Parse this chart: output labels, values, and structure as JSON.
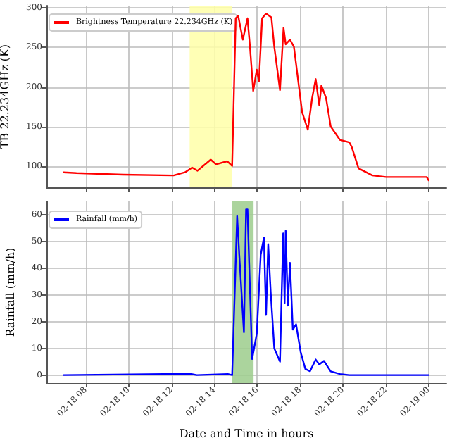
{
  "chart_data": [
    {
      "type": "line",
      "ylabel": "TB 22.234GHz (K)",
      "xlim": [
        "--02-18T06:10",
        "--02-19T00:50"
      ],
      "ylim": [
        73,
        303
      ],
      "yticks": [
        100,
        150,
        200,
        250,
        300
      ],
      "xticks": [
        {
          "value": "--02-18T08:00",
          "label": null
        },
        {
          "value": "--02-18T10:00",
          "label": null
        },
        {
          "value": "--02-18T12:00",
          "label": null
        },
        {
          "value": "--02-18T14:00",
          "label": null
        },
        {
          "value": "--02-18T16:00",
          "label": null
        },
        {
          "value": "--02-18T18:00",
          "label": null
        },
        {
          "value": "--02-18T20:00",
          "label": null
        },
        {
          "value": "--02-18T22:00",
          "label": null
        },
        {
          "value": "--02-19T00:00",
          "label": null
        }
      ],
      "tick_labels": "y",
      "grid": true,
      "legend": "top left",
      "marker": "none",
      "line_style": "solid",
      "bands": [
        {
          "axis": "x",
          "from": "--02-18T12:51",
          "to": "--02-18T14:50",
          "color": "#ffffa8"
        }
      ],
      "series": [
        {
          "name": "Brightness Temperature 22.234GHz (K)",
          "color": "#ff0000",
          "x": [
            "--02-18T06:58",
            "--02-18T07:34",
            "--02-18T09:44",
            "--02-18T12:06",
            "--02-18T12:38",
            "--02-18T12:58",
            "--02-18T13:13",
            "--02-18T13:50",
            "--02-18T14:05",
            "--02-18T14:36",
            "--02-18T14:50",
            "--02-18T15:00",
            "--02-18T15:07",
            "--02-18T15:20",
            "--02-18T15:33",
            "--02-18T15:40",
            "--02-18T15:49",
            "--02-18T15:59",
            "--02-18T16:05",
            "--02-18T16:14",
            "--02-18T16:25",
            "--02-18T16:40",
            "--02-18T16:48",
            "--02-18T17:04",
            "--02-18T17:14",
            "--02-18T17:20",
            "--02-18T17:32",
            "--02-18T17:43",
            "--02-18T18:06",
            "--02-18T18:22",
            "--02-18T18:34",
            "--02-18T18:44",
            "--02-18T18:54",
            "--02-18T19:00",
            "--02-18T19:13",
            "--02-18T19:26",
            "--02-18T19:52",
            "--02-18T20:18",
            "--02-18T20:25",
            "--02-18T20:44",
            "--02-18T21:23",
            "--02-18T22:01",
            "--02-18T23:55",
            "--02-19T00:00"
          ],
          "values": [
            92,
            91,
            89,
            88,
            92,
            98,
            94,
            108,
            102,
            106,
            100,
            287,
            290,
            260,
            287,
            251,
            195,
            222,
            207,
            287,
            293,
            288,
            251,
            196,
            275,
            254,
            260,
            251,
            168,
            146,
            186,
            210,
            177,
            202,
            186,
            150,
            133,
            130,
            124,
            97,
            88,
            86,
            86,
            82
          ]
        }
      ]
    },
    {
      "type": "line",
      "xlabel": "Date and Time in hours",
      "ylabel": "Rainfall (mm/h)",
      "xlim": [
        "--02-18T06:10",
        "--02-19T00:50"
      ],
      "ylim": [
        -3,
        65
      ],
      "yticks": [
        0,
        10,
        20,
        30,
        40,
        50,
        60
      ],
      "xticks": [
        {
          "value": "--02-18T08:00",
          "label": "02-18 08"
        },
        {
          "value": "--02-18T10:00",
          "label": "02-18 10"
        },
        {
          "value": "--02-18T12:00",
          "label": "02-18 12"
        },
        {
          "value": "--02-18T14:00",
          "label": "02-18 14"
        },
        {
          "value": "--02-18T16:00",
          "label": "02-18 16"
        },
        {
          "value": "--02-18T18:00",
          "label": "02-18 18"
        },
        {
          "value": "--02-18T20:00",
          "label": "02-18 20"
        },
        {
          "value": "--02-18T22:00",
          "label": "02-18 22"
        },
        {
          "value": "--02-19T00:00",
          "label": "02-19 00"
        }
      ],
      "grid": true,
      "legend": "top left",
      "marker": "none",
      "line_style": "solid",
      "bands": [
        {
          "axis": "x",
          "from": "--02-18T14:50",
          "to": "--02-18T15:50",
          "color": "#9ccc8c"
        }
      ],
      "series": [
        {
          "name": "Rainfall (mm/h)",
          "color": "#0000ff",
          "x": [
            "--02-18T06:58",
            "--02-18T12:51",
            "--02-18T13:11",
            "--02-18T14:38",
            "--02-18T14:50",
            "--02-18T15:04",
            "--02-18T15:10",
            "--02-18T15:20",
            "--02-18T15:23",
            "--02-18T15:29",
            "--02-18T15:33",
            "--02-18T15:46",
            "--02-18T15:59",
            "--02-18T16:10",
            "--02-18T16:19",
            "--02-18T16:25",
            "--02-18T16:31",
            "--02-18T16:38",
            "--02-18T16:48",
            "--02-18T17:04",
            "--02-18T17:13",
            "--02-18T17:17",
            "--02-18T17:20",
            "--02-18T17:26",
            "--02-18T17:32",
            "--02-18T17:40",
            "--02-18T17:49",
            "--02-18T18:02",
            "--02-18T18:15",
            "--02-18T18:28",
            "--02-18T18:44",
            "--02-18T18:54",
            "--02-18T19:07",
            "--02-18T19:26",
            "--02-18T19:52",
            "--02-18T20:18",
            "--02-19T00:00"
          ],
          "values": [
            0,
            0.5,
            0,
            0.4,
            0,
            59.5,
            45,
            22.5,
            16,
            62,
            62,
            6,
            15.5,
            45,
            51.5,
            22.5,
            49,
            31,
            10,
            5,
            53,
            27,
            54,
            26,
            42,
            17,
            19,
            8.5,
            2.3,
            1.4,
            5.8,
            4,
            5.3,
            1.4,
            0.4,
            0,
            0
          ]
        }
      ]
    }
  ]
}
